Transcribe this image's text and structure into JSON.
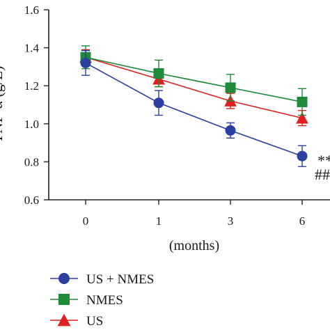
{
  "chart_data": {
    "type": "line",
    "ylabel": "TNF-α (g/L)",
    "xlabel": "(months)",
    "x": [
      "0",
      "1",
      "3",
      "6"
    ],
    "ylim": [
      0.6,
      1.6
    ],
    "yticks": [
      "0.6",
      "0.8",
      "1.0",
      "1.2",
      "1.4",
      "1.6"
    ],
    "grid": false,
    "legend_position": "bottom-left",
    "annotations": [
      "**",
      "##"
    ],
    "series": [
      {
        "name": "US + NMES",
        "color": "#2a3f9e",
        "marker": "circle",
        "values": [
          1.32,
          1.11,
          0.965,
          0.83
        ],
        "errors": [
          0.065,
          0.065,
          0.04,
          0.055
        ]
      },
      {
        "name": "NMES",
        "color": "#1f8a3a",
        "marker": "square",
        "values": [
          1.35,
          1.265,
          1.19,
          1.115
        ],
        "errors": [
          0.06,
          0.07,
          0.07,
          0.07
        ]
      },
      {
        "name": "US",
        "color": "#e02020",
        "marker": "triangle",
        "values": [
          1.35,
          1.235,
          1.12,
          1.03
        ],
        "errors": [
          0.04,
          0.04,
          0.04,
          0.04
        ]
      }
    ]
  }
}
